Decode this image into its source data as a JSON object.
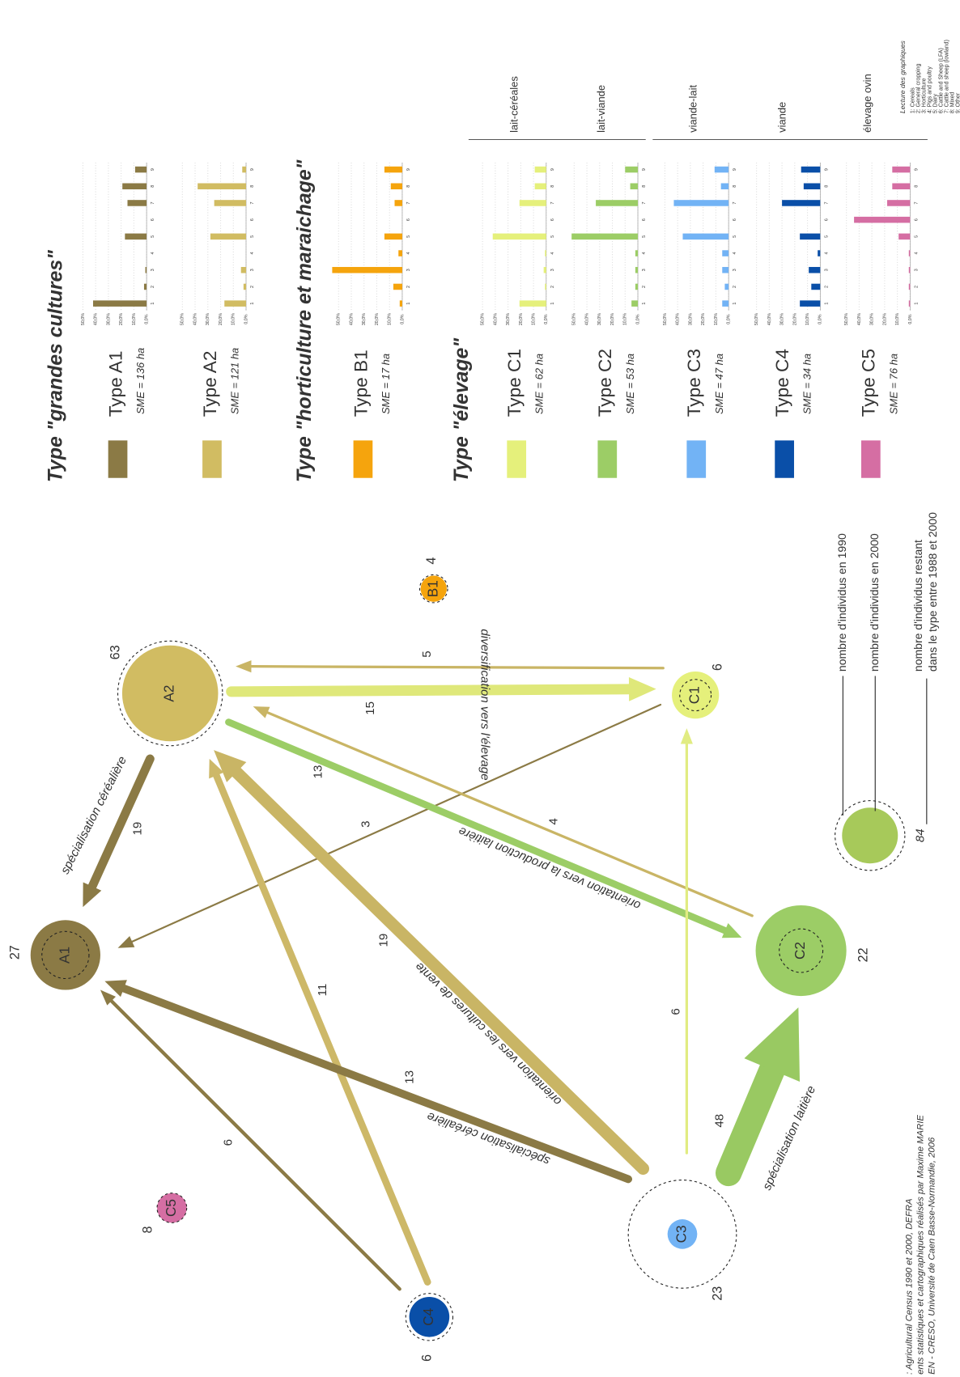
{
  "diagram": {
    "nodes": [
      {
        "label": "A1",
        "count": 27
      },
      {
        "label": "A2",
        "count": 63
      },
      {
        "label": "B1",
        "count": 4
      },
      {
        "label": "C1",
        "count": 6
      },
      {
        "label": "C2",
        "count": 22
      },
      {
        "label": "C3",
        "count": 23
      },
      {
        "label": "C4",
        "count": 6
      },
      {
        "label": "C5",
        "count": 8
      }
    ],
    "flows": [
      {
        "count": 19,
        "annotation": "spécialisation céréalière"
      },
      {
        "count": 5
      },
      {
        "count": 15,
        "annotation": "diversification vers l'élevage"
      },
      {
        "count": 3
      },
      {
        "count": 13,
        "annotation": "orientation vers la production laitière"
      },
      {
        "count": 4
      },
      {
        "count": 19,
        "annotation": "orientation vers les cultures de vente"
      },
      {
        "count": 11
      },
      {
        "count": 13,
        "annotation": "spécialisation céréalière"
      },
      {
        "count": 6
      },
      {
        "count": 6
      },
      {
        "count": 48,
        "annotation": "spécialisation laitière"
      }
    ]
  },
  "legend": {
    "sample_count": 84,
    "labels": [
      [
        "nombre d'individus en 1990"
      ],
      [
        "nombre d'individus en 2000"
      ],
      [
        "nombre d'individus restant",
        "dans le type entre 1988 et 2000"
      ]
    ]
  },
  "types": [
    {
      "title": "Type \"grandes cultures\"",
      "items": [
        {
          "name": "Type A1",
          "sme": "SME = 136 ha",
          "values": [
            42,
            2,
            1,
            0,
            17,
            0,
            15,
            19,
            9
          ]
        },
        {
          "name": "Type A2",
          "sme": "SME = 121 ha",
          "values": [
            17,
            2,
            4,
            0,
            28,
            0,
            25,
            38,
            3
          ]
        }
      ]
    },
    {
      "title": "Type \"horticulture et maraichage\"",
      "items": [
        {
          "name": "Type B1",
          "sme": "SME = 17 ha",
          "values": [
            2,
            7,
            55,
            3,
            14,
            0,
            6,
            9,
            14
          ]
        }
      ]
    },
    {
      "title": "Type \"élevage\"",
      "items": [
        {
          "name": "Type C1",
          "sme": "SME = 62 ha",
          "values": [
            21,
            1,
            2,
            1,
            42,
            0,
            21,
            9,
            9
          ]
        },
        {
          "name": "Type C2",
          "sme": "SME = 53 ha",
          "values": [
            5,
            2,
            2,
            2,
            52,
            0,
            33,
            6,
            10
          ]
        },
        {
          "name": "Type C3",
          "sme": "SME = 47 ha",
          "values": [
            5,
            3,
            5,
            5,
            36,
            0,
            43,
            6,
            11
          ]
        },
        {
          "name": "Type C4",
          "sme": "SME = 34 ha",
          "values": [
            16,
            7,
            9,
            2,
            16,
            0,
            30,
            13,
            15
          ]
        },
        {
          "name": "Type C5",
          "sme": "SME = 76 ha",
          "values": [
            1,
            1,
            1,
            1,
            9,
            44,
            18,
            14,
            14
          ]
        }
      ]
    }
  ],
  "bar_axis": {
    "ylim": [
      0,
      50
    ],
    "yticks": [
      {
        "value": 50,
        "label": "50,0%"
      },
      {
        "value": 40,
        "label": "40,0%"
      },
      {
        "value": 30,
        "label": "30,0%"
      },
      {
        "value": 20,
        "label": "20,0%"
      },
      {
        "value": 10,
        "label": "10,0%"
      },
      {
        "value": 0,
        "label": "0,0%"
      }
    ],
    "categories": [
      "1",
      "2",
      "3",
      "4",
      "5",
      "6",
      "7",
      "8",
      "9"
    ]
  },
  "subtypes": [
    "lait-céréales",
    "lait-viande",
    "viande-lait",
    "viande",
    "élevage ovin"
  ],
  "key": {
    "title": "Lecture des graphiques",
    "items": [
      "1: Cereals",
      "2: General cropping",
      "3: Horticulture",
      "4: Pigs and poultry",
      "5: Dairy",
      "6: Cattle and Sheep (LFA)",
      "7: Cattle and sheep (lowland)",
      "8: Mixed",
      "9: Other"
    ]
  },
  "source": [
    ": Agricultural Census 1990 et 2000, DEFRA",
    "ents statistiques et cartographiques réalisés par Maxime MARIE",
    "EN - CRESO, Université de Caen Basse-Normandie, 2006"
  ]
}
